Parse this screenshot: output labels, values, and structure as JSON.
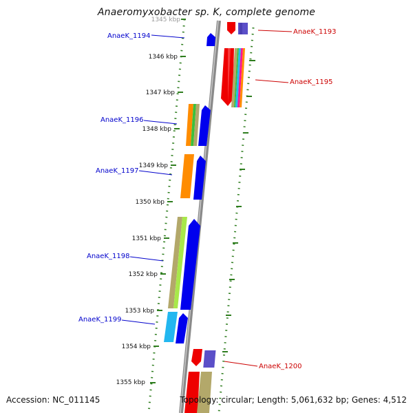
{
  "title": "Anaeromyxobacter sp. K, complete genome",
  "footer": {
    "accession": "Accession: NC_011145",
    "topology": "Topology: circular; Length: 5,061,632 bp; Genes: 4,512"
  },
  "scale_labels": [
    "1345 kbp",
    "1346 kbp",
    "1347 kbp",
    "1348 kbp",
    "1349 kbp",
    "1350 kbp",
    "1351 kbp",
    "1352 kbp",
    "1353 kbp",
    "1354 kbp",
    "1355 kbp"
  ],
  "reverse_genes": [
    {
      "name": "AnaeK_1194",
      "color": "#0000cc"
    },
    {
      "name": "AnaeK_1196",
      "color": "#0000cc"
    },
    {
      "name": "AnaeK_1197",
      "color": "#0000cc"
    },
    {
      "name": "AnaeK_1198",
      "color": "#0000cc"
    },
    {
      "name": "AnaeK_1199",
      "color": "#0000cc"
    }
  ],
  "forward_genes": [
    {
      "name": "AnaeK_1193",
      "color": "#cc0000"
    },
    {
      "name": "AnaeK_1195",
      "color": "#cc0000"
    },
    {
      "name": "AnaeK_1200",
      "color": "#cc0000"
    }
  ],
  "colors": {
    "backbone": "#8a8a8a",
    "tick": "#2e7d1e",
    "gene_red": "#ee0000",
    "gene_blue": "#0000ee",
    "gene_purple": "#5b4fc8",
    "orange": "#ff8c00",
    "green": "#3cc03c",
    "olive": "#b3a86a",
    "cyan": "#22b7f0"
  }
}
